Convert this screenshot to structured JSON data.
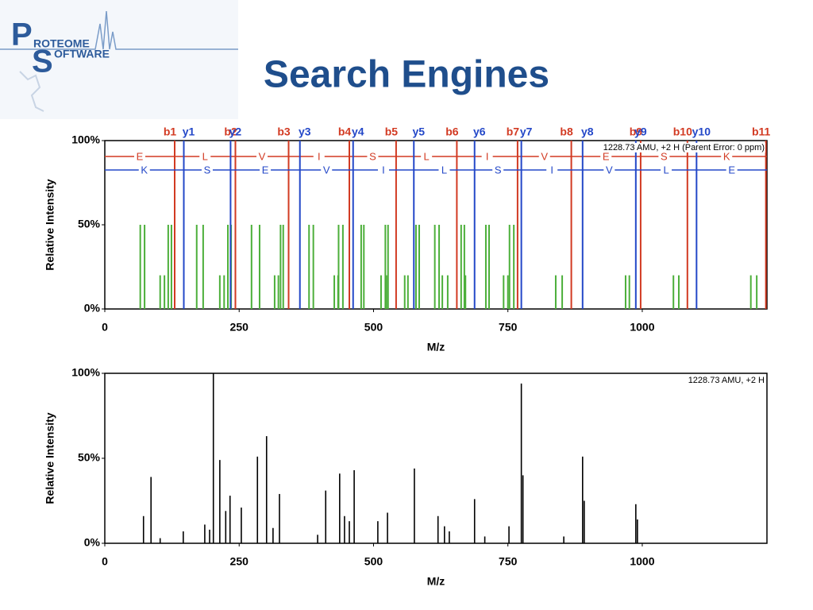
{
  "logo": {
    "p": "P",
    "roteome": "ROTEOME",
    "s": "S",
    "oftware": "OFTWARE"
  },
  "title": "Search Engines",
  "chart_data": [
    {
      "type": "annotated-spectrum",
      "y_label": "Relative Intensity",
      "x_label": "M/z",
      "annotation": "1228.73 AMU, +2 H (Parent Error: 0 ppm)",
      "xlim": [
        0,
        1232
      ],
      "xticks": [
        0,
        250,
        500,
        750,
        1000
      ],
      "ylim": [
        0,
        100
      ],
      "yticks": [
        {
          "value": 0,
          "label": "0%"
        },
        {
          "value": 50,
          "label": "50%"
        },
        {
          "value": 100,
          "label": "100%"
        }
      ],
      "series": [
        {
          "color": "#4caf3a",
          "x": [
            66,
            74,
            103,
            111,
            118,
            124,
            171,
            183,
            214,
            222,
            229,
            235,
            273,
            288,
            316,
            323,
            327,
            332,
            380,
            388,
            427,
            434,
            435,
            443,
            477,
            482,
            514,
            522,
            524,
            527,
            558,
            564,
            579,
            585,
            614,
            622,
            628,
            638,
            663,
            669,
            671,
            709,
            715,
            742,
            750,
            753,
            761,
            839,
            851,
            969,
            976,
            1058,
            1068,
            1202,
            1213
          ],
          "values": [
            50,
            50,
            20,
            20,
            50,
            50,
            50,
            50,
            20,
            20,
            50,
            50,
            50,
            50,
            20,
            20,
            50,
            50,
            50,
            50,
            20,
            20,
            50,
            50,
            50,
            50,
            20,
            50,
            20,
            50,
            20,
            20,
            50,
            50,
            50,
            50,
            20,
            20,
            50,
            50,
            20,
            50,
            50,
            20,
            20,
            50,
            50,
            20,
            20,
            20,
            20,
            20,
            20,
            20,
            20
          ]
        }
      ],
      "b_ions": {
        "color": "#d23a22",
        "labels": [
          "b1",
          "b2",
          "b3",
          "b4",
          "b5",
          "b6",
          "b7",
          "b8",
          "b9",
          "b10",
          "b11"
        ],
        "x": [
          130,
          243,
          342,
          455,
          542,
          655,
          768,
          868,
          997,
          1084,
          1230
        ]
      },
      "y_ions": {
        "color": "#2448c8",
        "labels": [
          "y1",
          "y2",
          "y3",
          "y4",
          "y5",
          "y6",
          "y7",
          "y8",
          "y9",
          "y10"
        ],
        "x": [
          147,
          234,
          363,
          462,
          575,
          688,
          775,
          889,
          988,
          1101
        ]
      },
      "sequence_b": [
        "E",
        "L",
        "V",
        "I",
        "S",
        "L",
        "I",
        "V",
        "E",
        "S",
        "K"
      ],
      "sequence_y": [
        "K",
        "S",
        "E",
        "V",
        "I",
        "L",
        "S",
        "I",
        "V",
        "L",
        "E"
      ]
    },
    {
      "type": "spectrum",
      "y_label": "Relative Intensity",
      "x_label": "M/z",
      "annotation": "1228.73 AMU, +2 H",
      "xlim": [
        0,
        1232
      ],
      "xticks": [
        0,
        250,
        500,
        750,
        1000
      ],
      "ylim": [
        0,
        100
      ],
      "yticks": [
        {
          "value": 0,
          "label": "0%"
        },
        {
          "value": 50,
          "label": "50%"
        },
        {
          "value": 100,
          "label": "100%"
        }
      ],
      "series": [
        {
          "color": "#000000",
          "x": [
            72,
            86,
            103,
            146,
            186,
            195,
            202,
            214,
            225,
            233,
            254,
            284,
            301,
            313,
            325,
            396,
            411,
            437,
            446,
            455,
            464,
            508,
            526,
            576,
            620,
            632,
            641,
            688,
            707,
            752,
            775,
            778,
            854,
            889,
            892,
            988,
            991
          ],
          "values": [
            16,
            39,
            3,
            7,
            11,
            8,
            100,
            49,
            19,
            28,
            21,
            51,
            63,
            9,
            29,
            5,
            31,
            41,
            16,
            13,
            43,
            13,
            18,
            44,
            16,
            10,
            7,
            26,
            4,
            10,
            94,
            40,
            4,
            51,
            25,
            23,
            14
          ]
        }
      ]
    }
  ]
}
